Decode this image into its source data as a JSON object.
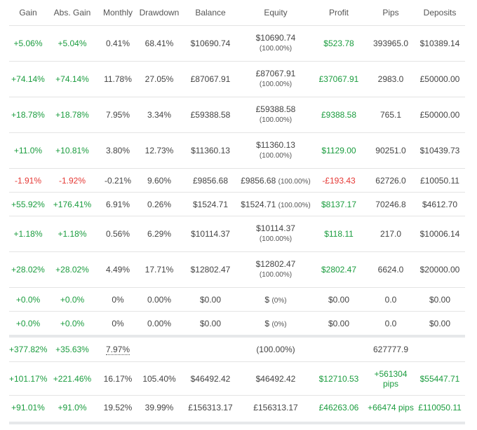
{
  "headers": [
    "Gain",
    "Abs. Gain",
    "Monthly",
    "Drawdown",
    "Balance",
    "Equity",
    "Profit",
    "Pips",
    "Deposits"
  ],
  "rows": [
    {
      "gain": "+5.06%",
      "abs_gain": "+5.04%",
      "monthly": "0.41%",
      "drawdown": "68.41%",
      "balance": "$10690.74",
      "equity": "$10690.74",
      "equity_pct": "(100.00%)",
      "profit": "$523.78",
      "pips": "393965.0",
      "deposits": "$10389.14",
      "sign": "pos",
      "layout": "tall"
    },
    {
      "gain": "+74.14%",
      "abs_gain": "+74.14%",
      "monthly": "11.78%",
      "drawdown": "27.05%",
      "balance": "£87067.91",
      "equity": "£87067.91",
      "equity_pct": "(100.00%)",
      "profit": "£37067.91",
      "pips": "2983.0",
      "deposits": "£50000.00",
      "sign": "pos",
      "layout": "tall"
    },
    {
      "gain": "+18.78%",
      "abs_gain": "+18.78%",
      "monthly": "7.95%",
      "drawdown": "3.34%",
      "balance": "£59388.58",
      "equity": "£59388.58",
      "equity_pct": "(100.00%)",
      "profit": "£9388.58",
      "pips": "765.1",
      "deposits": "£50000.00",
      "sign": "pos",
      "layout": "tall"
    },
    {
      "gain": "+11.0%",
      "abs_gain": "+10.81%",
      "monthly": "3.80%",
      "drawdown": "12.73%",
      "balance": "$11360.13",
      "equity": "$11360.13",
      "equity_pct": "(100.00%)",
      "profit": "$1129.00",
      "pips": "90251.0",
      "deposits": "$10439.73",
      "sign": "pos",
      "layout": "tall"
    },
    {
      "gain": "-1.91%",
      "abs_gain": "-1.92%",
      "monthly": "-0.21%",
      "drawdown": "9.60%",
      "balance": "£9856.68",
      "equity": "£9856.68",
      "equity_pct": "(100.00%)",
      "profit": "-£193.43",
      "pips": "62726.0",
      "deposits": "£10050.11",
      "sign": "neg",
      "layout": "short"
    },
    {
      "gain": "+55.92%",
      "abs_gain": "+176.41%",
      "monthly": "6.91%",
      "drawdown": "0.26%",
      "balance": "$1524.71",
      "equity": "$1524.71",
      "equity_pct": "(100.00%)",
      "profit": "$8137.17",
      "pips": "70246.8",
      "deposits": "$4612.70",
      "sign": "pos",
      "layout": "short"
    },
    {
      "gain": "+1.18%",
      "abs_gain": "+1.18%",
      "monthly": "0.56%",
      "drawdown": "6.29%",
      "balance": "$10114.37",
      "equity": "$10114.37",
      "equity_pct": "(100.00%)",
      "profit": "$118.11",
      "pips": "217.0",
      "deposits": "$10006.14",
      "sign": "pos",
      "layout": "tall"
    },
    {
      "gain": "+28.02%",
      "abs_gain": "+28.02%",
      "monthly": "4.49%",
      "drawdown": "17.71%",
      "balance": "$12802.47",
      "equity": "$12802.47",
      "equity_pct": "(100.00%)",
      "profit": "$2802.47",
      "pips": "6624.0",
      "deposits": "$20000.00",
      "sign": "pos",
      "layout": "tall"
    },
    {
      "gain": "+0.0%",
      "abs_gain": "+0.0%",
      "monthly": "0%",
      "drawdown": "0.00%",
      "balance": "$0.00",
      "equity": "$",
      "equity_pct": "(0%)",
      "profit": "$0.00",
      "pips": "0.0",
      "deposits": "$0.00",
      "sign": "zero",
      "layout": "short"
    },
    {
      "gain": "+0.0%",
      "abs_gain": "+0.0%",
      "monthly": "0%",
      "drawdown": "0.00%",
      "balance": "$0.00",
      "equity": "$",
      "equity_pct": "(0%)",
      "profit": "$0.00",
      "pips": "0.0",
      "deposits": "$0.00",
      "sign": "zero",
      "layout": "short"
    }
  ],
  "summary": [
    {
      "gain": "+377.82%",
      "abs_gain": "+35.63%",
      "monthly": "7.97%",
      "drawdown": "",
      "balance": "",
      "equity": "(100.00%)",
      "profit": "",
      "pips": "627777.9",
      "deposits": ""
    },
    {
      "gain": "+101.17%",
      "abs_gain": "+221.46%",
      "monthly": "16.17%",
      "drawdown": "105.40%",
      "balance": "$46492.42",
      "equity": "$46492.42",
      "profit": "$12710.53",
      "pips_l1": "+561304",
      "pips_l2": "pips",
      "deposits": "$55447.71"
    },
    {
      "gain": "+91.01%",
      "abs_gain": "+91.0%",
      "monthly": "19.52%",
      "drawdown": "39.99%",
      "balance": "£156313.17",
      "equity": "£156313.17",
      "profit": "£46263.06",
      "pips": "+66474 pips",
      "deposits": "£110050.11"
    }
  ],
  "colors": {
    "positive": "#1a9c3e",
    "negative": "#e53935",
    "text": "#444444",
    "divider": "#e4e4e4",
    "summary_bar": "#e6e8ea"
  }
}
